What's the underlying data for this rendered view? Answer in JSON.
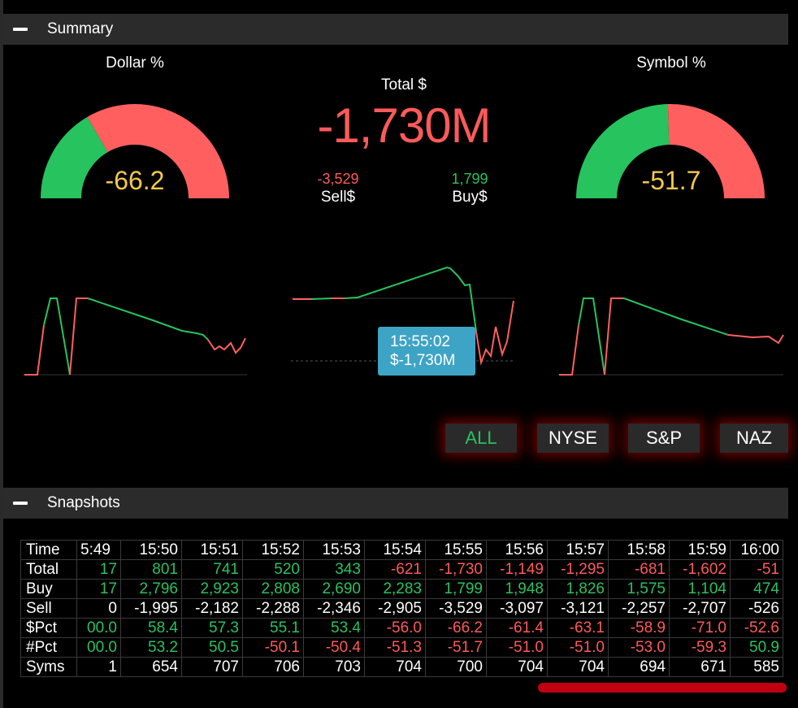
{
  "summary": {
    "title": "Summary",
    "dollar_pct": {
      "label": "Dollar %",
      "value": "-66.2",
      "fraction": 0.331
    },
    "symbol_pct": {
      "label": "Symbol %",
      "value": "-51.7",
      "fraction": 0.4915
    },
    "total": {
      "label": "Total $",
      "value": "-1,730M"
    },
    "sell": {
      "value": "-3,529",
      "label": "Sell$"
    },
    "buy": {
      "value": "1,799",
      "label": "Buy$"
    },
    "tooltip": {
      "time": "15:55:02",
      "value": "$-1,730M"
    },
    "filters": [
      {
        "label": "ALL",
        "active": true
      },
      {
        "label": "NYSE",
        "active": false
      },
      {
        "label": "S&P",
        "active": false
      },
      {
        "label": "NAZ",
        "active": false
      }
    ]
  },
  "snapshots": {
    "title": "Snapshots",
    "columns": [
      "5:49",
      "15:50",
      "15:51",
      "15:52",
      "15:53",
      "15:54",
      "15:55",
      "15:56",
      "15:57",
      "15:58",
      "15:59",
      "16:00"
    ],
    "rows": [
      {
        "label": "Total",
        "values": [
          "17",
          "801",
          "741",
          "520",
          "343",
          "-621",
          "-1,730",
          "-1,149",
          "-1,295",
          "-681",
          "-1,602",
          "-51"
        ]
      },
      {
        "label": "Buy",
        "values": [
          "17",
          "2,796",
          "2,923",
          "2,808",
          "2,690",
          "2,283",
          "1,799",
          "1,948",
          "1,826",
          "1,575",
          "1,104",
          "474"
        ]
      },
      {
        "label": "Sell",
        "values": [
          "0",
          "-1,995",
          "-2,182",
          "-2,288",
          "-2,346",
          "-2,905",
          "-3,529",
          "-3,097",
          "-3,121",
          "-2,257",
          "-2,707",
          "-526"
        ]
      },
      {
        "label": "$Pct",
        "values": [
          "00.0",
          "58.4",
          "57.3",
          "55.1",
          "53.4",
          "-56.0",
          "-66.2",
          "-61.4",
          "-63.1",
          "-58.9",
          "-71.0",
          "-52.6"
        ]
      },
      {
        "label": "#Pct",
        "values": [
          "00.0",
          "53.2",
          "50.5",
          "-50.1",
          "-50.4",
          "-51.3",
          "-51.7",
          "-51.0",
          "-51.0",
          "-53.0",
          "-59.3",
          "50.9"
        ]
      },
      {
        "label": "Syms",
        "values": [
          "1",
          "654",
          "707",
          "706",
          "703",
          "704",
          "700",
          "704",
          "704",
          "694",
          "671",
          "585"
        ]
      }
    ],
    "header_label": "Time"
  },
  "colors": {
    "positive": "#27c35e",
    "negative": "#ff5a5a",
    "gauge_value": "#f2c94c",
    "tooltip": "#3ea4c6"
  }
}
